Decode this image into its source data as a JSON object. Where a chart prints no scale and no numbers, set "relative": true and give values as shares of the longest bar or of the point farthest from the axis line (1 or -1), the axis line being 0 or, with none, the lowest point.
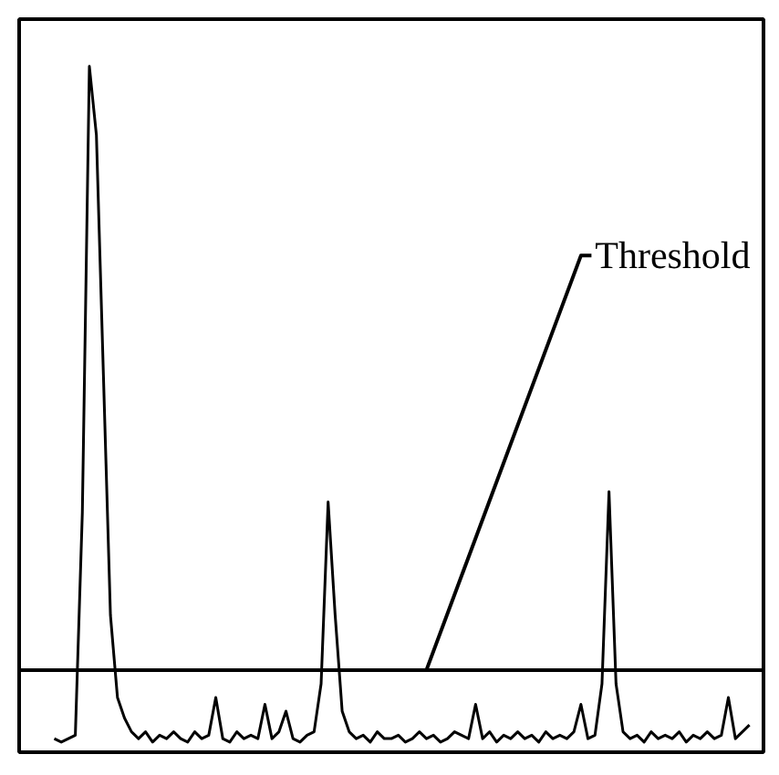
{
  "chart_data": {
    "type": "line",
    "relative": true,
    "grid": false,
    "marker": "none",
    "line_style": "solid",
    "categories": [
      null,
      null,
      null,
      null,
      null,
      null,
      null,
      null,
      null,
      null,
      null,
      null,
      null,
      null,
      null,
      null,
      null,
      null,
      null,
      null,
      null,
      null,
      null,
      null,
      null,
      null,
      null,
      null,
      null,
      null,
      null,
      null,
      null,
      null,
      null,
      null,
      null,
      null,
      null,
      null,
      null,
      null,
      null,
      null,
      null,
      null,
      null,
      null,
      null,
      null,
      null,
      null,
      null,
      null,
      null,
      null,
      null,
      null,
      null,
      null,
      null,
      null,
      null,
      null,
      null,
      null,
      null,
      null,
      null,
      null,
      null,
      null,
      null,
      null,
      null,
      null,
      null,
      null,
      null,
      null,
      null,
      null,
      null,
      null,
      null,
      null,
      null,
      null,
      null,
      null,
      null,
      null,
      null,
      null,
      null,
      null,
      null,
      null,
      null,
      null
    ],
    "series": [
      {
        "color": "#000000",
        "values": [
          0.02,
          0.015,
          0.02,
          0.025,
          0.35,
          1.0,
          0.9,
          0.55,
          0.2,
          0.08,
          0.05,
          0.03,
          0.02,
          0.03,
          0.015,
          0.025,
          0.02,
          0.03,
          0.02,
          0.015,
          0.03,
          0.02,
          0.025,
          0.08,
          0.02,
          0.015,
          0.03,
          0.02,
          0.025,
          0.02,
          0.07,
          0.02,
          0.03,
          0.06,
          0.02,
          0.015,
          0.025,
          0.03,
          0.1,
          0.365,
          0.2,
          0.06,
          0.03,
          0.02,
          0.025,
          0.015,
          0.03,
          0.02,
          0.02,
          0.025,
          0.015,
          0.02,
          0.03,
          0.02,
          0.025,
          0.015,
          0.02,
          0.03,
          0.025,
          0.02,
          0.07,
          0.02,
          0.03,
          0.015,
          0.025,
          0.02,
          0.03,
          0.02,
          0.025,
          0.015,
          0.03,
          0.02,
          0.025,
          0.02,
          0.03,
          0.07,
          0.02,
          0.025,
          0.1,
          0.38,
          0.1,
          0.03,
          0.02,
          0.025,
          0.015,
          0.03,
          0.02,
          0.025,
          0.02,
          0.03,
          0.015,
          0.025,
          0.02,
          0.03,
          0.02,
          0.025,
          0.08,
          0.02,
          0.03,
          0.04
        ]
      }
    ],
    "ref_lines": [
      {
        "axis": "y",
        "value": 0.12,
        "label": "Threshold",
        "color": "#000000",
        "line_style": "solid"
      }
    ]
  }
}
